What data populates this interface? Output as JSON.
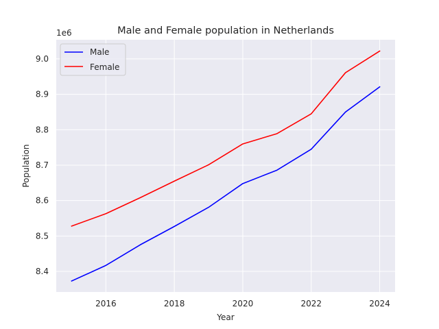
{
  "chart_data": {
    "type": "line",
    "title": "Male and Female population in Netherlands",
    "xlabel": "Year",
    "ylabel": "Population",
    "y_offset_label": "1e6",
    "x": [
      2015,
      2016,
      2017,
      2018,
      2019,
      2020,
      2021,
      2022,
      2023,
      2024
    ],
    "x_ticks": [
      2016,
      2018,
      2020,
      2022,
      2024
    ],
    "y_ticks": [
      8.4,
      8.5,
      8.6,
      8.7,
      8.8,
      8.9,
      9.0
    ],
    "xlim": [
      2014.55,
      2024.45
    ],
    "ylim": [
      8.342,
      9.054
    ],
    "grid": true,
    "legend_position": "top-left",
    "series": [
      {
        "name": "Male",
        "color": "#0000ff",
        "values": [
          8.373,
          8.417,
          8.475,
          8.527,
          8.581,
          8.648,
          8.686,
          8.745,
          8.85,
          8.921
        ]
      },
      {
        "name": "Female",
        "color": "#ff0000",
        "values": [
          8.528,
          8.563,
          8.608,
          8.655,
          8.701,
          8.76,
          8.789,
          8.845,
          8.961,
          9.022
        ]
      }
    ]
  }
}
